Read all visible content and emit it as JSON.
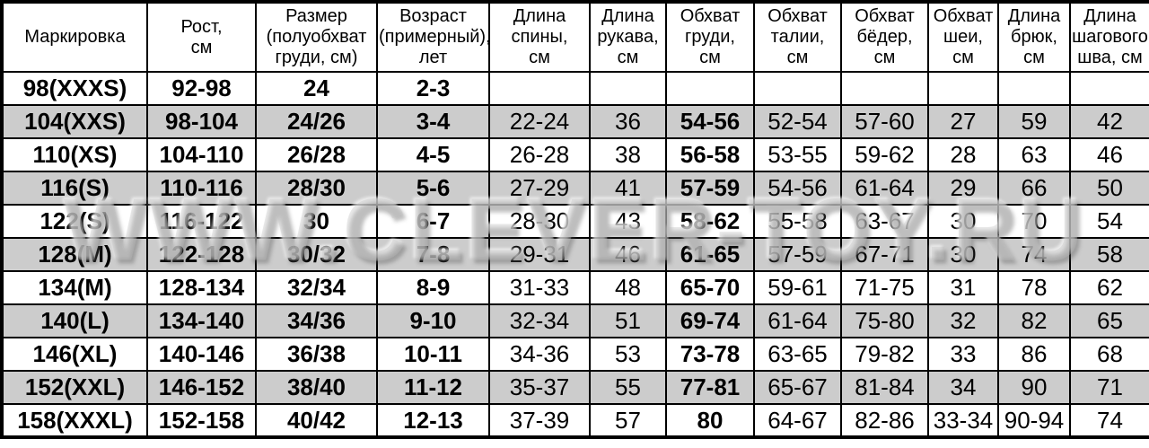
{
  "watermark": {
    "text": "WWW.CLEVER-TOY.RU"
  },
  "colors": {
    "row_alt_background": "#cccccc",
    "border": "#000000",
    "background": "#ffffff"
  },
  "table": {
    "columns": [
      "Маркировка",
      "Рост,\nсм",
      "Размер\n(полуобхват\nгруди, см)",
      "Возраст\n(примерный),\nлет",
      "Длина\nспины,\nсм",
      "Длина\nрукава,\nсм",
      "Обхват\nгруди,\nсм",
      "Обхват\nталии,\nсм",
      "Обхват\nбёдер,\nсм",
      "Обхват\nшеи,\nсм",
      "Длина\nбрюк,\nсм",
      "Длина\nшагового\nшва, см"
    ],
    "rows": [
      [
        "98(XXXS)",
        "92-98",
        "24",
        "2-3",
        "",
        "",
        "",
        "",
        "",
        "",
        "",
        ""
      ],
      [
        "104(XXS)",
        "98-104",
        "24/26",
        "3-4",
        "22-24",
        "36",
        "54-56",
        "52-54",
        "57-60",
        "27",
        "59",
        "42"
      ],
      [
        "110(XS)",
        "104-110",
        "26/28",
        "4-5",
        "26-28",
        "38",
        "56-58",
        "53-55",
        "59-62",
        "28",
        "63",
        "46"
      ],
      [
        "116(S)",
        "110-116",
        "28/30",
        "5-6",
        "27-29",
        "41",
        "57-59",
        "54-56",
        "61-64",
        "29",
        "66",
        "50"
      ],
      [
        "122(S)",
        "116-122",
        "30",
        "6-7",
        "28-30",
        "43",
        "58-62",
        "55-58",
        "63-67",
        "30",
        "70",
        "54"
      ],
      [
        "128(M)",
        "122-128",
        "30/32",
        "7-8",
        "29-31",
        "46",
        "61-65",
        "57-59",
        "67-71",
        "30",
        "74",
        "58"
      ],
      [
        "134(M)",
        "128-134",
        "32/34",
        "8-9",
        "31-33",
        "48",
        "65-70",
        "59-61",
        "71-75",
        "31",
        "78",
        "62"
      ],
      [
        "140(L)",
        "134-140",
        "34/36",
        "9-10",
        "32-34",
        "51",
        "69-74",
        "61-64",
        "75-80",
        "32",
        "82",
        "65"
      ],
      [
        "146(XL)",
        "140-146",
        "36/38",
        "10-11",
        "34-36",
        "53",
        "73-78",
        "63-65",
        "79-82",
        "33",
        "86",
        "68"
      ],
      [
        "152(XXL)",
        "146-152",
        "38/40",
        "11-12",
        "35-37",
        "55",
        "77-81",
        "65-67",
        "81-84",
        "34",
        "90",
        "71"
      ],
      [
        "158(XXXL)",
        "152-158",
        "40/42",
        "12-13",
        "37-39",
        "57",
        "80",
        "64-67",
        "82-86",
        "33-34",
        "90-94",
        "74"
      ]
    ]
  },
  "chart_data": {
    "type": "table",
    "title": "",
    "columns": [
      "Маркировка",
      "Рост, см",
      "Размер (полуобхват груди, см)",
      "Возраст (примерный), лет",
      "Длина спины, см",
      "Длина рукава, см",
      "Обхват груди, см",
      "Обхват талии, см",
      "Обхват бёдер, см",
      "Обхват шеи, см",
      "Длина брюк, см",
      "Длина шагового шва, см"
    ],
    "rows": [
      [
        "98(XXXS)",
        "92-98",
        "24",
        "2-3",
        "",
        "",
        "",
        "",
        "",
        "",
        "",
        ""
      ],
      [
        "104(XXS)",
        "98-104",
        "24/26",
        "3-4",
        "22-24",
        "36",
        "54-56",
        "52-54",
        "57-60",
        "27",
        "59",
        "42"
      ],
      [
        "110(XS)",
        "104-110",
        "26/28",
        "4-5",
        "26-28",
        "38",
        "56-58",
        "53-55",
        "59-62",
        "28",
        "63",
        "46"
      ],
      [
        "116(S)",
        "110-116",
        "28/30",
        "5-6",
        "27-29",
        "41",
        "57-59",
        "54-56",
        "61-64",
        "29",
        "66",
        "50"
      ],
      [
        "122(S)",
        "116-122",
        "30",
        "6-7",
        "28-30",
        "43",
        "58-62",
        "55-58",
        "63-67",
        "30",
        "70",
        "54"
      ],
      [
        "128(M)",
        "122-128",
        "30/32",
        "7-8",
        "29-31",
        "46",
        "61-65",
        "57-59",
        "67-71",
        "30",
        "74",
        "58"
      ],
      [
        "134(M)",
        "128-134",
        "32/34",
        "8-9",
        "31-33",
        "48",
        "65-70",
        "59-61",
        "71-75",
        "31",
        "78",
        "62"
      ],
      [
        "140(L)",
        "134-140",
        "34/36",
        "9-10",
        "32-34",
        "51",
        "69-74",
        "61-64",
        "75-80",
        "32",
        "82",
        "65"
      ],
      [
        "146(XL)",
        "140-146",
        "36/38",
        "10-11",
        "34-36",
        "53",
        "73-78",
        "63-65",
        "79-82",
        "33",
        "86",
        "68"
      ],
      [
        "152(XXL)",
        "146-152",
        "38/40",
        "11-12",
        "35-37",
        "55",
        "77-81",
        "65-67",
        "81-84",
        "34",
        "90",
        "71"
      ],
      [
        "158(XXXL)",
        "152-158",
        "40/42",
        "12-13",
        "37-39",
        "57",
        "80",
        "64-67",
        "82-86",
        "33-34",
        "90-94",
        "74"
      ]
    ],
    "notes": "Children clothing size chart; chest circumference column and first four columns rendered bold; alternating gray row shading; embossed watermark WWW.CLEVER-TOY.RU across middle"
  }
}
